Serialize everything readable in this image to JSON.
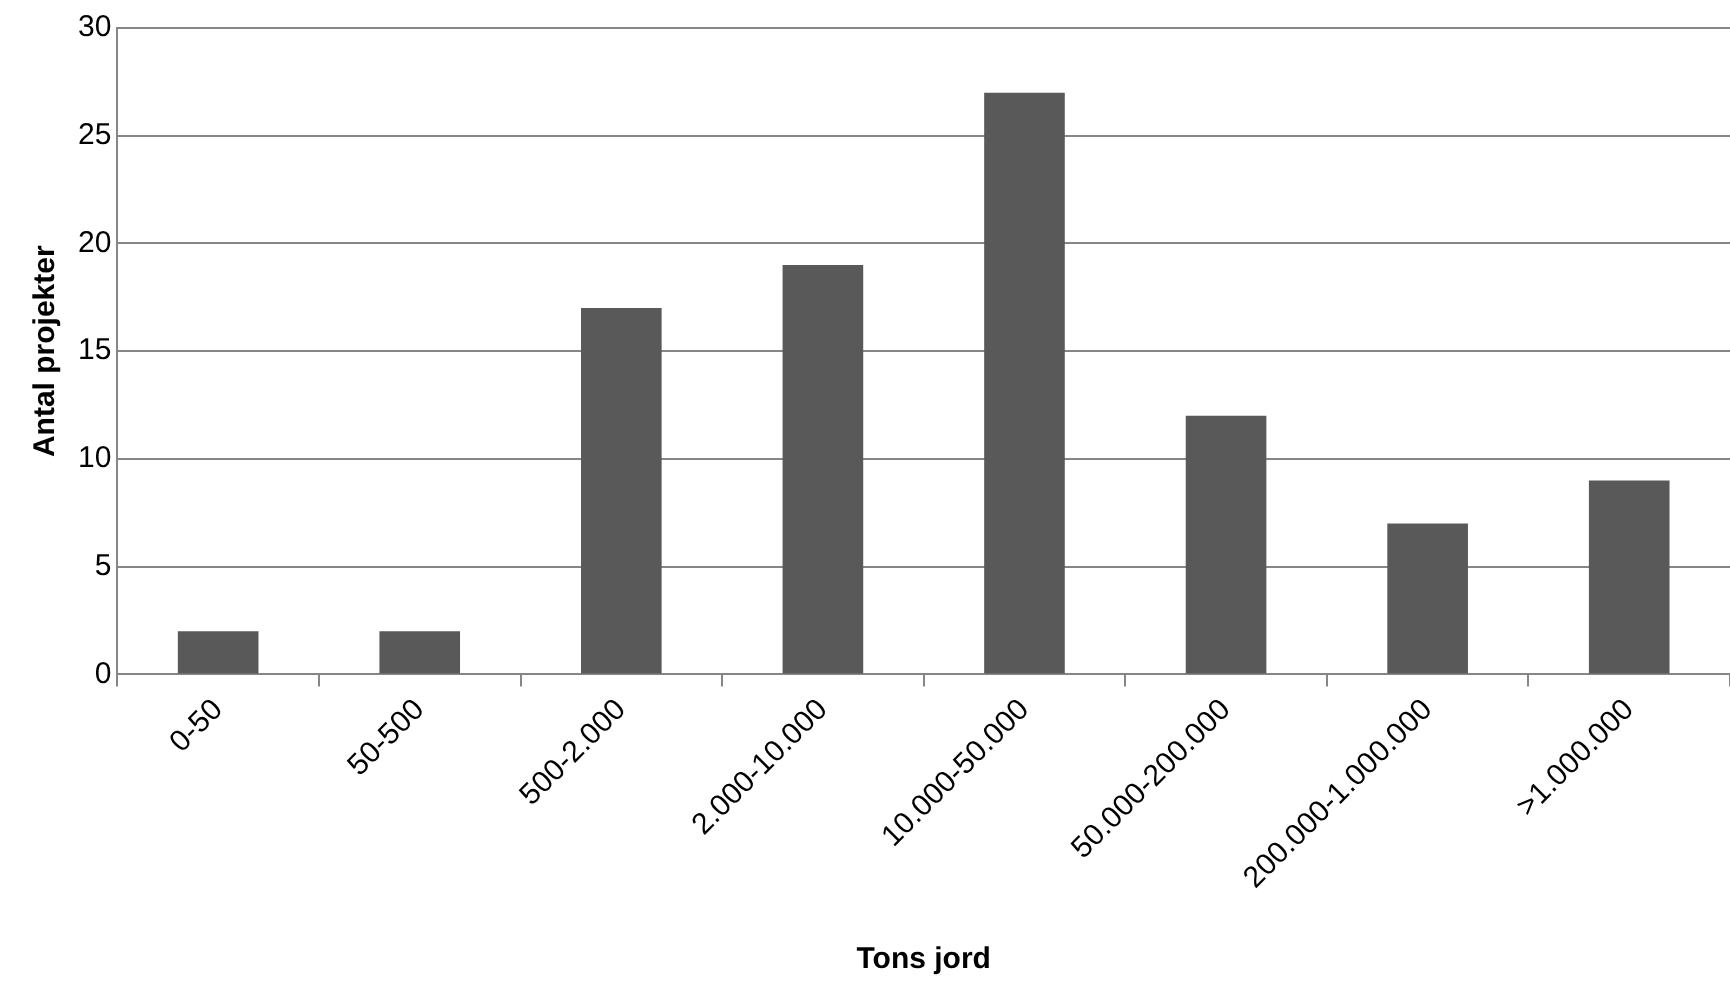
{
  "chart_data": {
    "type": "bar",
    "xlabel": "Tons jord",
    "ylabel": "Antal projekter",
    "categories": [
      "0-50",
      "50-500",
      "500-2.000",
      "2.000-10.000",
      "10.000-50.000",
      "50.000-200.000",
      "200.000-1.000.000",
      ">1.000.000"
    ],
    "values": [
      2,
      2,
      17,
      19,
      27,
      12,
      7,
      9
    ],
    "color": "#595959",
    "ylim": [
      0,
      30
    ],
    "yticks": [
      0,
      5,
      10,
      15,
      20,
      25,
      30
    ],
    "grid": "y",
    "legend": false
  }
}
